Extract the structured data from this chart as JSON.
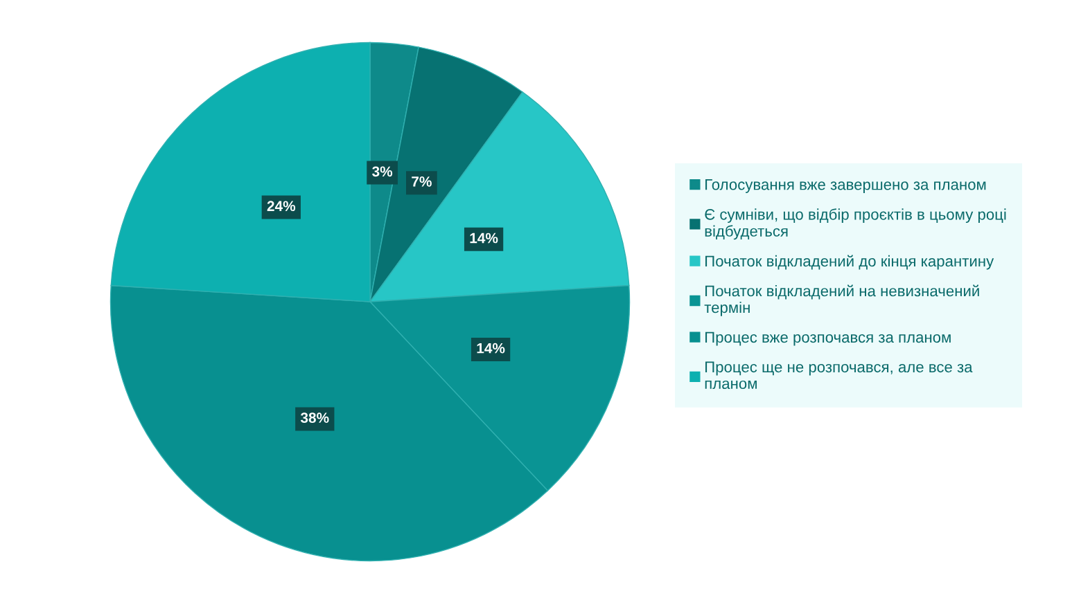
{
  "chart_data": {
    "type": "pie",
    "categories": [
      "Голосування вже завершено за планом",
      "Є сумніви, що відбір проєктів в цьому році відбудеться",
      "Початок відкладений до кінця карантину",
      "Початок відкладений на невизначений термін",
      "Процес вже розпочався за планом",
      "Процес ще не розпочався, але все за планом"
    ],
    "values": [
      3,
      7,
      14,
      14,
      38,
      24
    ],
    "value_labels": [
      "3%",
      "7%",
      "14%",
      "14%",
      "38%",
      "24%"
    ],
    "colors": [
      "#0e8a8a",
      "#077272",
      "#27c6c6",
      "#0a9494",
      "#089090",
      "#0db0b0"
    ],
    "legend": "right"
  }
}
